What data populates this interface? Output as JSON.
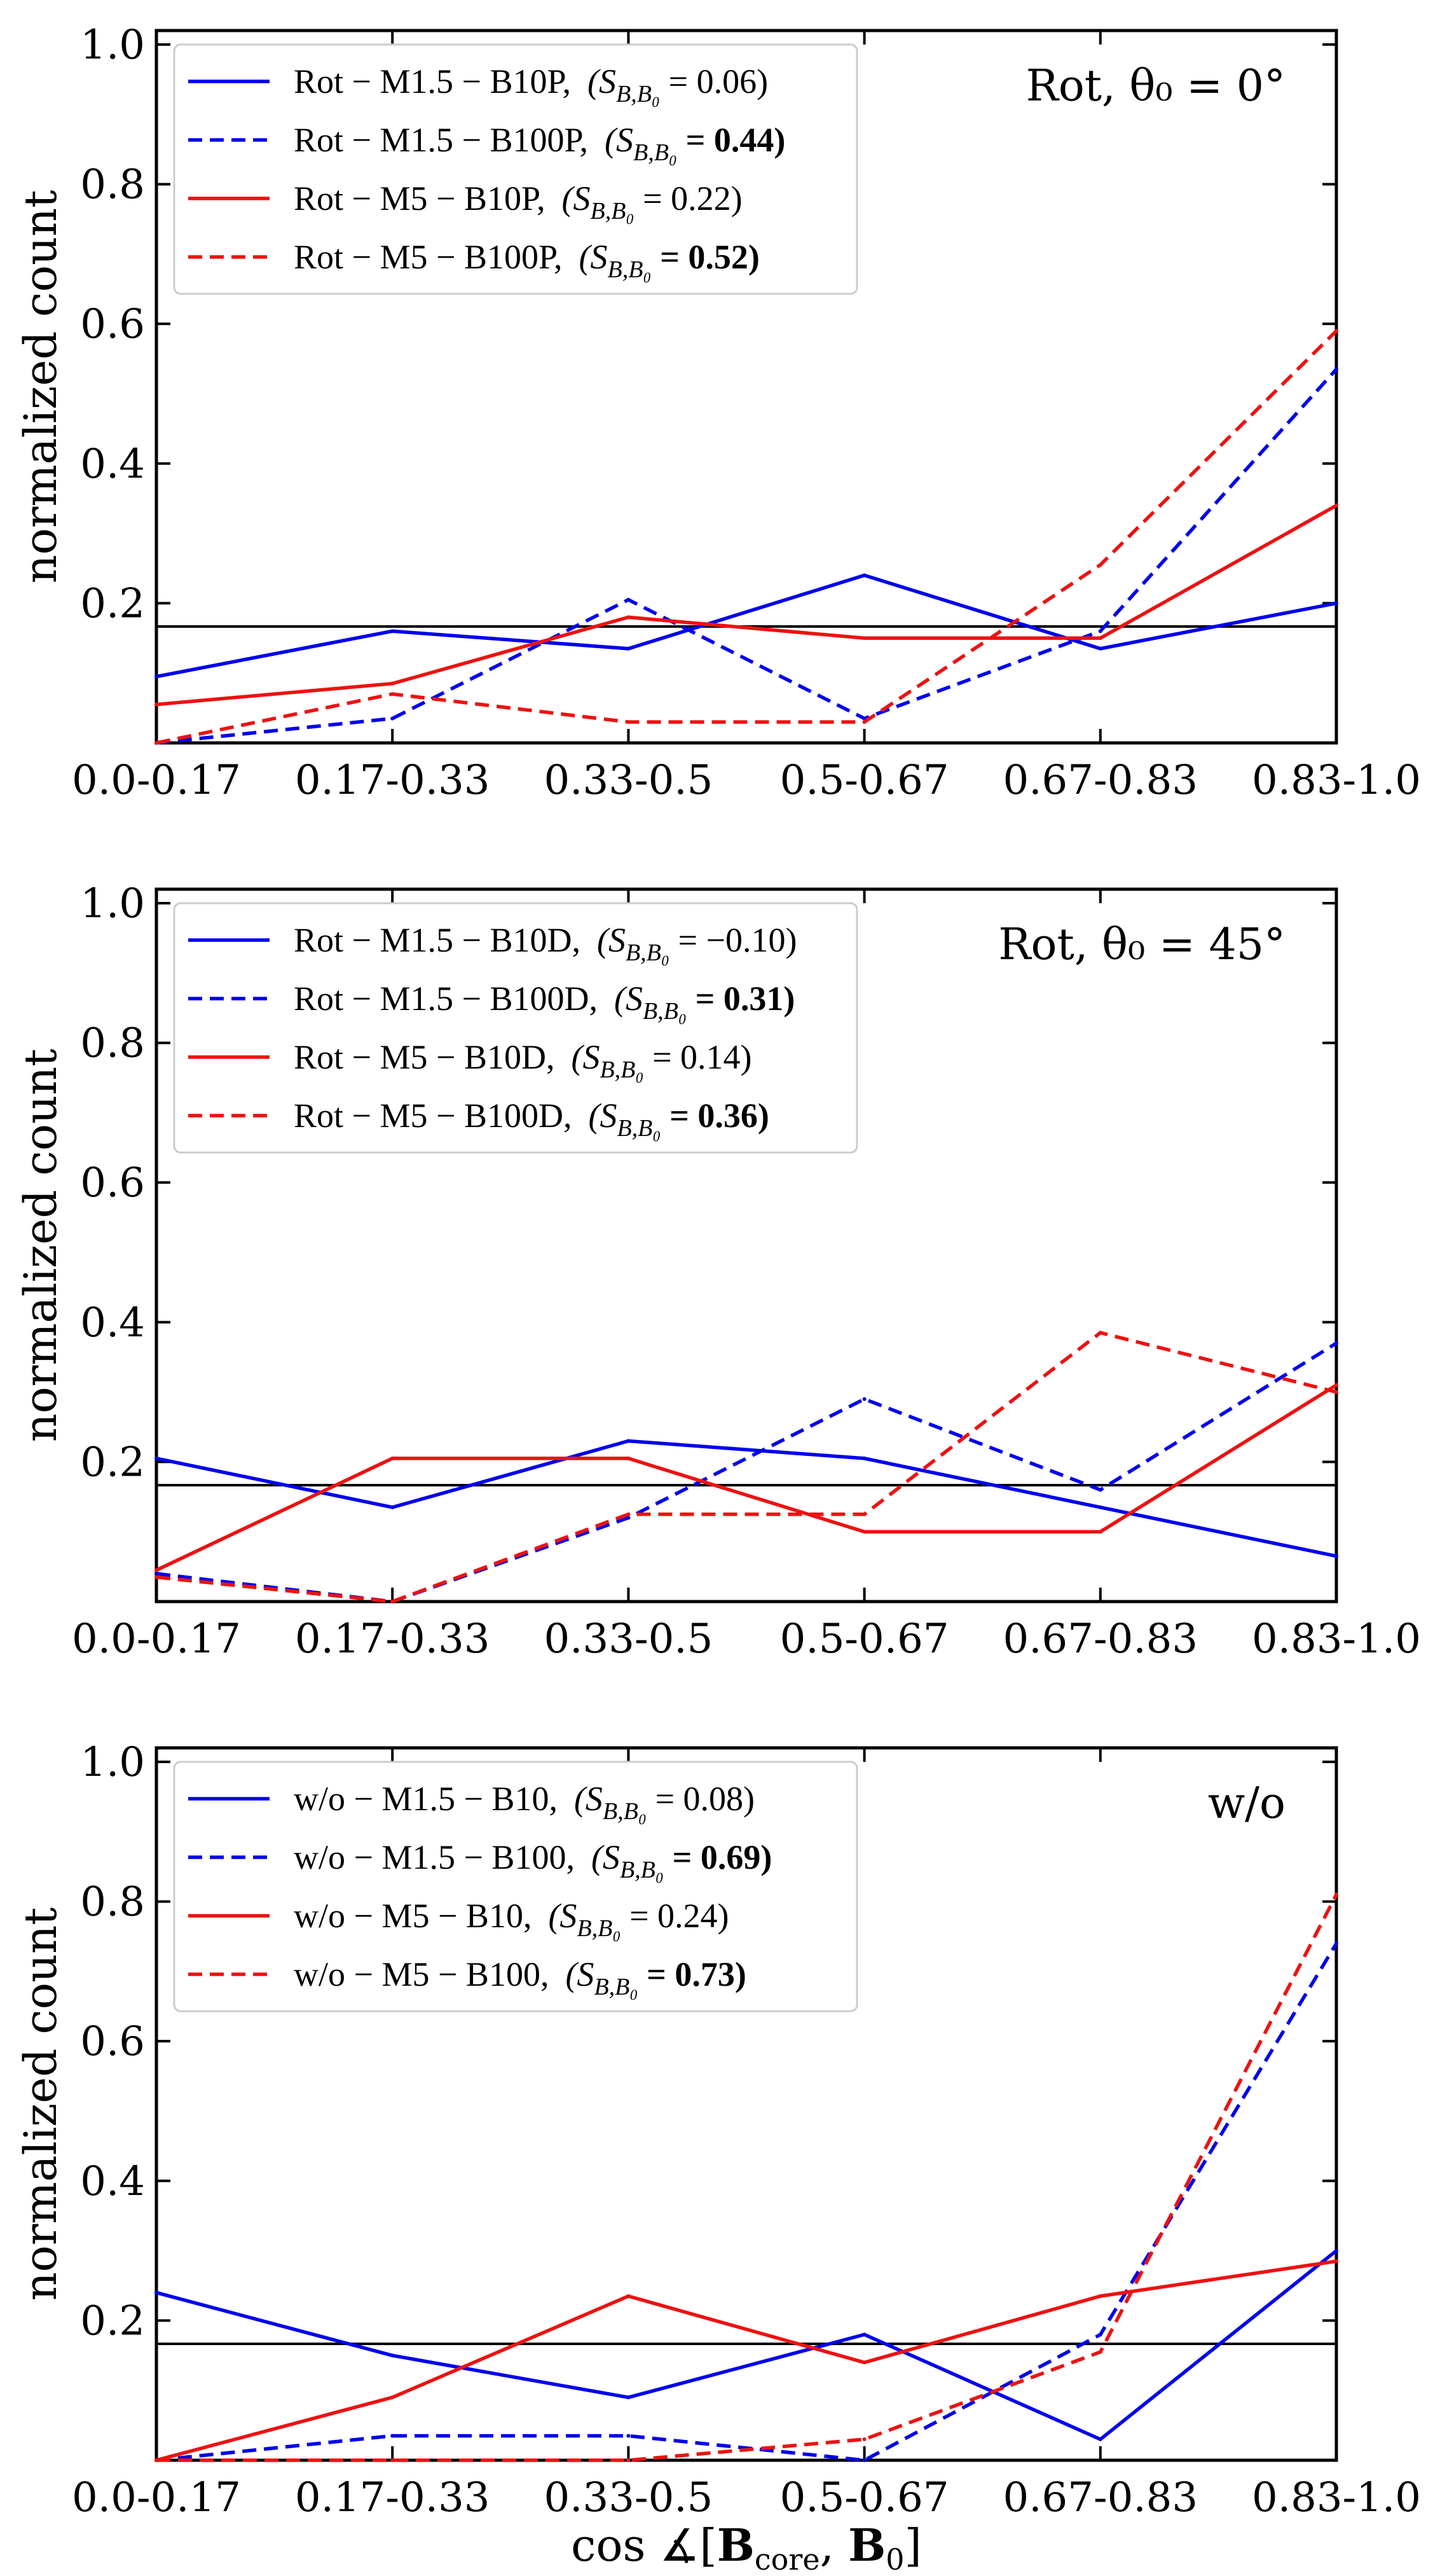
{
  "colors": {
    "blue": "#0000ee",
    "red": "#ee1111",
    "reference": "#000000"
  },
  "chart_data": [
    {
      "type": "line",
      "panel_label": "Rot, θ₀ = 0°",
      "ylabel": "normalized count",
      "xlabel": "",
      "categories": [
        "0.0-0.17",
        "0.17-0.33",
        "0.33-0.5",
        "0.5-0.67",
        "0.67-0.83",
        "0.83-1.0"
      ],
      "yticks": [
        "0.2",
        "0.4",
        "0.6",
        "0.8",
        "1.0"
      ],
      "ylim": [
        0,
        1.02
      ],
      "reference_line": 0.1667,
      "legend_position": "top-left",
      "series": [
        {
          "name": "Rot − M1.5 − B10P,",
          "stat_prefix": "(S",
          "stat_sub": "B,B₀",
          "stat_value": " = 0.06)",
          "bold": false,
          "color": "blue",
          "dash": "solid",
          "values": [
            0.095,
            0.16,
            0.135,
            0.24,
            0.135,
            0.2
          ]
        },
        {
          "name": "Rot − M1.5 − B100P,",
          "stat_prefix": "(S",
          "stat_sub": "B,B₀",
          "stat_value": " = 0.44)",
          "bold": true,
          "color": "blue",
          "dash": "dashed",
          "values": [
            0.0,
            0.035,
            0.205,
            0.035,
            0.16,
            0.535
          ]
        },
        {
          "name": "Rot − M5 − B10P,",
          "stat_prefix": "(S",
          "stat_sub": "B,B₀",
          "stat_value": " = 0.22)",
          "bold": false,
          "color": "red",
          "dash": "solid",
          "values": [
            0.055,
            0.085,
            0.18,
            0.15,
            0.15,
            0.34
          ]
        },
        {
          "name": "Rot − M5 − B100P,",
          "stat_prefix": "(S",
          "stat_sub": "B,B₀",
          "stat_value": " = 0.52)",
          "bold": true,
          "color": "red",
          "dash": "dashed",
          "values": [
            0.0,
            0.07,
            0.03,
            0.03,
            0.255,
            0.59
          ]
        }
      ]
    },
    {
      "type": "line",
      "panel_label": "Rot, θ₀ = 45°",
      "ylabel": "normalized count",
      "xlabel": "",
      "categories": [
        "0.0-0.17",
        "0.17-0.33",
        "0.33-0.5",
        "0.5-0.67",
        "0.67-0.83",
        "0.83-1.0"
      ],
      "yticks": [
        "0.2",
        "0.4",
        "0.6",
        "0.8",
        "1.0"
      ],
      "ylim": [
        0,
        1.02
      ],
      "reference_line": 0.1667,
      "legend_position": "top-left",
      "series": [
        {
          "name": "Rot − M1.5 − B10D,",
          "stat_prefix": "(S",
          "stat_sub": "B,B₀",
          "stat_value": " = −0.10)",
          "bold": false,
          "color": "blue",
          "dash": "solid",
          "values": [
            0.205,
            0.135,
            0.23,
            0.205,
            0.135,
            0.065
          ]
        },
        {
          "name": "Rot − M1.5 − B100D,",
          "stat_prefix": "(S",
          "stat_sub": "B,B₀",
          "stat_value": " = 0.31)",
          "bold": true,
          "color": "blue",
          "dash": "dashed",
          "values": [
            0.04,
            0.0,
            0.12,
            0.29,
            0.16,
            0.37
          ]
        },
        {
          "name": "Rot − M5 − B10D,",
          "stat_prefix": "(S",
          "stat_sub": "B,B₀",
          "stat_value": " = 0.14)",
          "bold": false,
          "color": "red",
          "dash": "solid",
          "values": [
            0.045,
            0.205,
            0.205,
            0.1,
            0.1,
            0.31
          ]
        },
        {
          "name": "Rot − M5 − B100D,",
          "stat_prefix": "(S",
          "stat_sub": "B,B₀",
          "stat_value": " = 0.36)",
          "bold": true,
          "color": "red",
          "dash": "dashed",
          "values": [
            0.035,
            0.0,
            0.125,
            0.125,
            0.385,
            0.3
          ]
        }
      ]
    },
    {
      "type": "line",
      "panel_label": "w/o",
      "ylabel": "normalized count",
      "xlabel": "cos ∡[B_core, B₀]",
      "xlabel_prefix": "cos ∡[",
      "xlabel_b1": "B",
      "xlabel_b1_sub": "core",
      "xlabel_sep": ", ",
      "xlabel_b2": "B",
      "xlabel_b2_sub": "0",
      "xlabel_suffix": "]",
      "categories": [
        "0.0-0.17",
        "0.17-0.33",
        "0.33-0.5",
        "0.5-0.67",
        "0.67-0.83",
        "0.83-1.0"
      ],
      "yticks": [
        "0.2",
        "0.4",
        "0.6",
        "0.8",
        "1.0"
      ],
      "ylim": [
        0,
        1.02
      ],
      "reference_line": 0.1667,
      "legend_position": "top-left",
      "series": [
        {
          "name": "w/o − M1.5 − B10,",
          "stat_prefix": "(S",
          "stat_sub": "B,B₀",
          "stat_value": " = 0.08)",
          "bold": false,
          "color": "blue",
          "dash": "solid",
          "values": [
            0.24,
            0.15,
            0.09,
            0.18,
            0.03,
            0.3
          ]
        },
        {
          "name": "w/o − M1.5 − B100,",
          "stat_prefix": "(S",
          "stat_sub": "B,B₀",
          "stat_value": " = 0.69)",
          "bold": true,
          "color": "blue",
          "dash": "dashed",
          "values": [
            0.0,
            0.035,
            0.035,
            0.0,
            0.18,
            0.74
          ]
        },
        {
          "name": "w/o − M5 − B10,",
          "stat_prefix": "(S",
          "stat_sub": "B,B₀",
          "stat_value": " = 0.24)",
          "bold": false,
          "color": "red",
          "dash": "solid",
          "values": [
            0.0,
            0.09,
            0.235,
            0.14,
            0.235,
            0.285
          ]
        },
        {
          "name": "w/o − M5 − B100,",
          "stat_prefix": "(S",
          "stat_sub": "B,B₀",
          "stat_value": " = 0.73)",
          "bold": true,
          "color": "red",
          "dash": "dashed",
          "values": [
            0.0,
            0.0,
            0.0,
            0.03,
            0.155,
            0.81
          ]
        }
      ]
    }
  ]
}
